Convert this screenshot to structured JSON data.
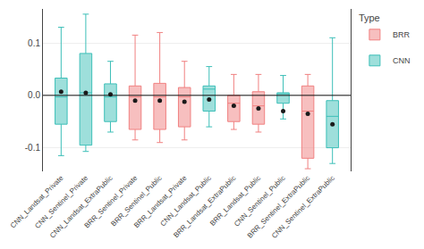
{
  "chart_data": {
    "type": "box",
    "categories": [
      "CNN_Landsat_Private",
      "CNN_Sentinel_Private",
      "CNN_Landsat_ExtraPublic",
      "BRR_Sentinel_Private",
      "BRR_Sentinel_Public",
      "BRR_Landsat_Private",
      "CNN_Landsat_Public",
      "BRR_Landsat_ExtraPublic",
      "BRR_Landsat_Public",
      "CNN_Sentinel_Public",
      "BRR_Sentinel_ExtraPublic",
      "CNN_Sentinel_ExtraPublic"
    ],
    "colors": [
      "#3dbfb8",
      "#3dbfb8",
      "#3dbfb8",
      "#f08080",
      "#f08080",
      "#f08080",
      "#3dbfb8",
      "#f08080",
      "#f08080",
      "#3dbfb8",
      "#f08080",
      "#3dbfb8"
    ],
    "boxes": [
      {
        "q1": -0.055,
        "median": -0.003,
        "q3": 0.033,
        "mean": 0.007,
        "whislo": -0.115,
        "whishi": 0.13
      },
      {
        "q1": -0.095,
        "median": 0.005,
        "q3": 0.08,
        "mean": 0.005,
        "whislo": -0.107,
        "whishi": 0.155
      },
      {
        "q1": -0.05,
        "median": -0.003,
        "q3": 0.022,
        "mean": 0.002,
        "whislo": -0.07,
        "whishi": 0.065
      },
      {
        "q1": -0.065,
        "median": -0.003,
        "q3": 0.018,
        "mean": -0.01,
        "whislo": -0.085,
        "whishi": 0.115
      },
      {
        "q1": -0.065,
        "median": -0.003,
        "q3": 0.023,
        "mean": -0.01,
        "whislo": -0.09,
        "whishi": 0.12
      },
      {
        "q1": -0.06,
        "median": -0.003,
        "q3": 0.015,
        "mean": -0.012,
        "whislo": -0.085,
        "whishi": 0.065
      },
      {
        "q1": -0.03,
        "median": 0.012,
        "q3": 0.018,
        "mean": -0.008,
        "whislo": -0.06,
        "whishi": 0.055
      },
      {
        "q1": -0.05,
        "median": -0.015,
        "q3": 0.0,
        "mean": -0.02,
        "whislo": -0.065,
        "whishi": 0.04
      },
      {
        "q1": -0.055,
        "median": -0.02,
        "q3": 0.007,
        "mean": -0.025,
        "whislo": -0.07,
        "whishi": 0.04
      },
      {
        "q1": -0.015,
        "median": 0.003,
        "q3": 0.005,
        "mean": -0.03,
        "whislo": -0.045,
        "whishi": 0.038
      },
      {
        "q1": -0.12,
        "median": -0.03,
        "q3": 0.018,
        "mean": -0.035,
        "whislo": -0.14,
        "whishi": 0.04
      },
      {
        "q1": -0.1,
        "median": -0.04,
        "q3": -0.01,
        "mean": -0.055,
        "whislo": -0.13,
        "whishi": 0.11
      }
    ],
    "mean_color": "#1a1a1a",
    "marker": "circle",
    "hlines": [
      {
        "value": 0.0,
        "color": "#111111"
      }
    ],
    "ylim": [
      -0.145,
      0.165
    ],
    "yticks": [
      -0.1,
      {
        "value": 0.0,
        "label": "0.0"
      },
      0.1
    ],
    "grid": true,
    "legend": "upper right",
    "legend_title": "Type",
    "legend_entries": [
      {
        "name": "BRR",
        "color": "#f08080"
      },
      {
        "name": "CNN",
        "color": "#3dbfb8"
      }
    ]
  }
}
